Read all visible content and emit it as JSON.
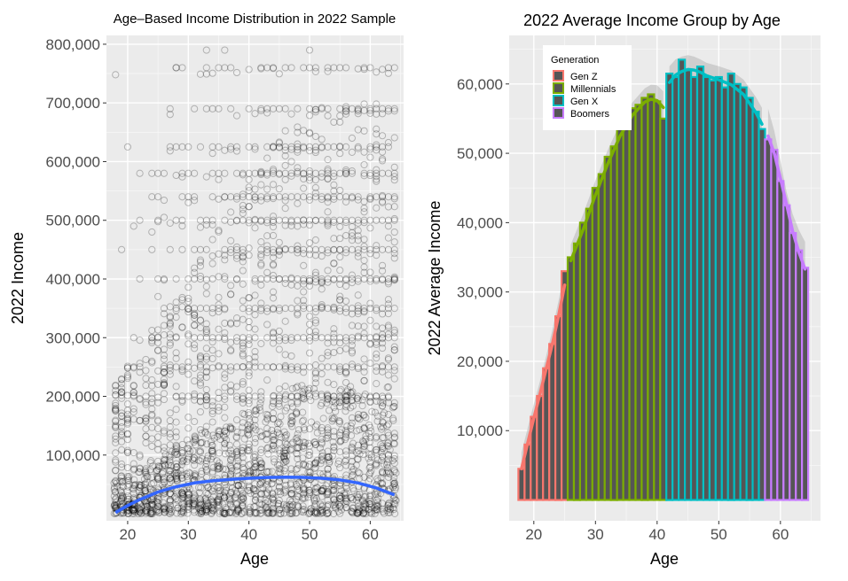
{
  "chart_data": [
    {
      "type": "scatter",
      "title": "Age–Based Income Distribution in 2022 Sample",
      "xlabel": "Age",
      "ylabel": "2022 Income",
      "xlim": [
        16.5,
        65.5
      ],
      "ylim": [
        -12000,
        815000
      ],
      "x_ticks": [
        20,
        30,
        40,
        50,
        60
      ],
      "y_ticks": [
        100000,
        200000,
        300000,
        400000,
        500000,
        600000,
        700000,
        800000
      ],
      "y_tick_labels": [
        "100,000",
        "200,000",
        "300,000",
        "400,000",
        "500,000",
        "600,000",
        "700,000",
        "800,000"
      ],
      "grid": true,
      "point_color": "#000000",
      "smooth_color": "#3366ff",
      "income_levels": [
        760000,
        690000,
        625000,
        580000,
        540000,
        500000,
        450000,
        400000,
        350000,
        300000,
        250000,
        200000
      ],
      "sparse_points": [
        {
          "x": 18,
          "y": 748000
        },
        {
          "x": 19,
          "y": 450000
        },
        {
          "x": 20,
          "y": 625000
        },
        {
          "x": 21,
          "y": 490000
        },
        {
          "x": 22,
          "y": 580000
        },
        {
          "x": 24,
          "y": 480000
        },
        {
          "x": 25,
          "y": 370000
        },
        {
          "x": 26,
          "y": 505000
        },
        {
          "x": 27,
          "y": 690000
        },
        {
          "x": 28,
          "y": 760000
        },
        {
          "x": 33,
          "y": 790000
        },
        {
          "x": 36,
          "y": 790000
        },
        {
          "x": 50,
          "y": 790000
        }
      ],
      "smooth_line": {
        "x": [
          18,
          20,
          22,
          25,
          28,
          31,
          34,
          37,
          40,
          43,
          46,
          49,
          52,
          55,
          58,
          61,
          64
        ],
        "y": [
          2000,
          14000,
          24000,
          37000,
          46000,
          52500,
          56000,
          58500,
          60500,
          61800,
          62300,
          62000,
          60500,
          57500,
          52500,
          44000,
          32000
        ]
      }
    },
    {
      "type": "bar",
      "title": "2022 Average Income Group by Age",
      "xlabel": "Age",
      "ylabel": "2022 Average Income",
      "xlim": [
        16,
        66.5
      ],
      "ylim": [
        -3000,
        67000
      ],
      "x_ticks": [
        20,
        30,
        40,
        50,
        60
      ],
      "y_ticks": [
        10000,
        20000,
        30000,
        40000,
        50000,
        60000
      ],
      "y_tick_labels": [
        "10,000",
        "20,000",
        "30,000",
        "40,000",
        "50,000",
        "60,000"
      ],
      "grid": true,
      "legend": {
        "title": "Generation",
        "position": "top-left",
        "entries": [
          {
            "name": "Gen Z",
            "color": "#f8766d"
          },
          {
            "name": "Millennials",
            "color": "#7cae00"
          },
          {
            "name": "Gen X",
            "color": "#00bfc4"
          },
          {
            "name": "Boomers",
            "color": "#c77cff"
          }
        ]
      },
      "series": [
        {
          "name": "Gen Z",
          "color": "#f8766d",
          "x": [
            18,
            19,
            20,
            21,
            22,
            23,
            24,
            25
          ],
          "values": [
            4500,
            8000,
            12000,
            15000,
            19000,
            22500,
            26500,
            33000
          ]
        },
        {
          "name": "Millennials",
          "color": "#7cae00",
          "x": [
            26,
            27,
            28,
            29,
            30,
            31,
            32,
            33,
            34,
            35,
            36,
            37,
            38,
            39,
            40,
            41
          ],
          "values": [
            35000,
            37000,
            40000,
            42000,
            45000,
            47000,
            49500,
            51000,
            53500,
            57500,
            56500,
            57000,
            58000,
            58500,
            57500,
            55000
          ]
        },
        {
          "name": "Gen X",
          "color": "#00bfc4",
          "x": [
            42,
            43,
            44,
            45,
            46,
            47,
            48,
            49,
            50,
            51,
            52,
            53,
            54,
            55,
            56,
            57
          ],
          "values": [
            61500,
            61000,
            63500,
            62000,
            61000,
            62500,
            61000,
            60500,
            61000,
            59500,
            61500,
            60000,
            59500,
            58000,
            56000,
            53500
          ]
        },
        {
          "name": "Boomers",
          "color": "#c77cff",
          "x": [
            58,
            59,
            60,
            61,
            62,
            63,
            64
          ],
          "values": [
            52000,
            50500,
            46000,
            42500,
            38500,
            36000,
            33500
          ]
        }
      ],
      "smooth_lines": [
        {
          "x": [
            18,
            19,
            20,
            21,
            22,
            23,
            24,
            25
          ],
          "y": [
            4500,
            8200,
            11800,
            15300,
            18900,
            22500,
            26500,
            31000
          ]
        },
        {
          "x": [
            26,
            28,
            30,
            32,
            34,
            36,
            38,
            39,
            40,
            41
          ],
          "y": [
            34500,
            39000,
            44000,
            48500,
            52500,
            55500,
            57400,
            57800,
            57600,
            56600
          ]
        },
        {
          "x": [
            42,
            43,
            44,
            45,
            46,
            47,
            48,
            50,
            52,
            54,
            56,
            57
          ],
          "y": [
            60200,
            61300,
            61800,
            62100,
            62000,
            61700,
            61200,
            60600,
            59900,
            58500,
            55900,
            54200
          ]
        },
        {
          "x": [
            58,
            59,
            60,
            61,
            62,
            63,
            64
          ],
          "y": [
            52500,
            50000,
            46400,
            42600,
            38700,
            35700,
            33300
          ]
        }
      ]
    }
  ]
}
